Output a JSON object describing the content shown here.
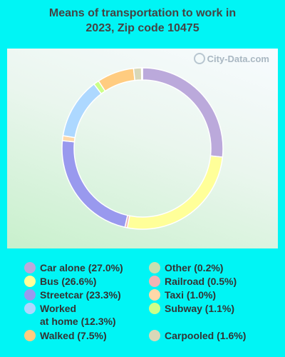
{
  "title_line1": "Means of transportation to work in",
  "title_line2": "2023, Zip code 10475",
  "watermark": "City-Data.com",
  "chart_data": {
    "type": "pie",
    "style": "donut",
    "title": "Means of transportation to work in 2023, Zip code 10475",
    "slices": [
      {
        "label": "Car alone (27.0%)",
        "value": 27.0,
        "color": "#bba9db"
      },
      {
        "label": "Bus (26.6%)",
        "value": 26.6,
        "color": "#ffff99"
      },
      {
        "label": "Railroad (0.5%)",
        "value": 0.5,
        "color": "#f0b4b4"
      },
      {
        "label": "Streetcar (23.3%)",
        "value": 23.3,
        "color": "#9999ee"
      },
      {
        "label": "Taxi (1.0%)",
        "value": 1.0,
        "color": "#ffd8a8"
      },
      {
        "label": "Worked\nat home (12.3%)",
        "value": 12.3,
        "color": "#add8ff"
      },
      {
        "label": "Subway (1.1%)",
        "value": 1.1,
        "color": "#ccff88"
      },
      {
        "label": "Walked (7.5%)",
        "value": 7.5,
        "color": "#ffcc80"
      },
      {
        "label": "Carpooled (1.6%)",
        "value": 1.6,
        "color": "#d8d8b8"
      },
      {
        "label": "Other (0.2%)",
        "value": 0.2,
        "color": "#c8e0b0"
      }
    ],
    "legend_position": "bottom"
  },
  "legend": {
    "left": [
      {
        "label": "Car alone (27.0%)",
        "color": "#bba9db"
      },
      {
        "label": "Bus (26.6%)",
        "color": "#ffff99"
      },
      {
        "label": "Streetcar (23.3%)",
        "color": "#9999ee"
      },
      {
        "label": "Worked\nat home (12.3%)",
        "color": "#add8ff"
      },
      {
        "label": "Walked (7.5%)",
        "color": "#ffcc80"
      }
    ],
    "right": [
      {
        "label": "Other (0.2%)",
        "color": "#c8e0b0"
      },
      {
        "label": "Railroad (0.5%)",
        "color": "#f0b4b4"
      },
      {
        "label": "Taxi (1.0%)",
        "color": "#ffd8a8"
      },
      {
        "label": "Subway (1.1%)",
        "color": "#ccff88"
      },
      {
        "label": "Carpooled (1.6%)",
        "color": "#d8d8b8"
      }
    ]
  }
}
